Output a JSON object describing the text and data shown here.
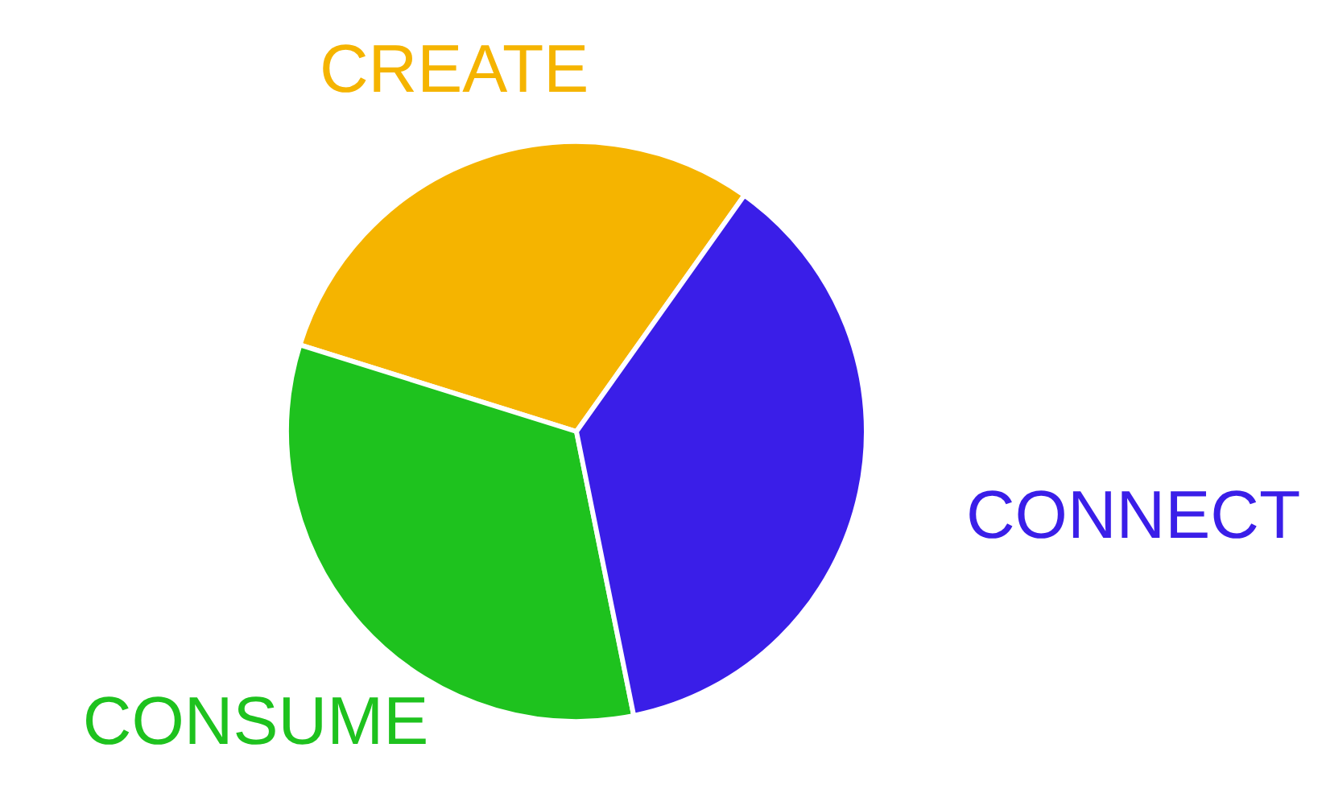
{
  "chart_data": {
    "type": "pie",
    "categories": [
      "CREATE",
      "CONSUME",
      "CONNECT"
    ],
    "values": [
      30,
      33,
      37
    ],
    "colors": [
      "#f5b400",
      "#1ec21e",
      "#3a1ee8"
    ],
    "legend": false
  }
}
